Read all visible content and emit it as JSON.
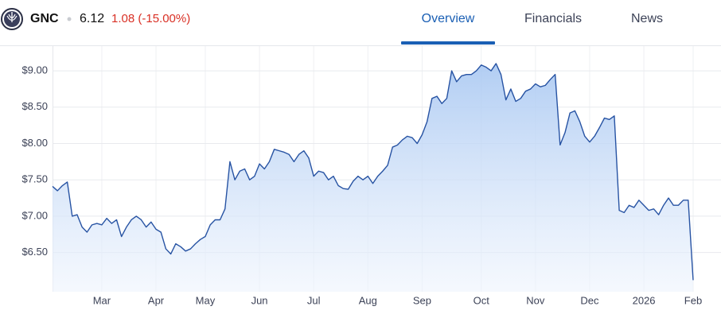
{
  "header": {
    "ticker": "GNC",
    "price": "6.12",
    "change": "1.08 (-15.00%)",
    "tabs": [
      "Overview",
      "Financials",
      "News"
    ]
  },
  "chart_data": {
    "type": "area",
    "color": "#2753a3",
    "grid": true,
    "categories": [
      null,
      null,
      null,
      null,
      null,
      null,
      null,
      null,
      null,
      null,
      "Mar",
      null,
      null,
      null,
      null,
      null,
      null,
      null,
      null,
      null,
      null,
      "Apr",
      null,
      null,
      null,
      null,
      null,
      null,
      null,
      null,
      null,
      "May",
      null,
      null,
      null,
      null,
      null,
      null,
      null,
      null,
      null,
      null,
      "Jun",
      null,
      null,
      null,
      null,
      null,
      null,
      null,
      null,
      null,
      null,
      "Jul",
      null,
      null,
      null,
      null,
      null,
      null,
      null,
      null,
      null,
      null,
      "Aug",
      null,
      null,
      null,
      null,
      null,
      null,
      null,
      null,
      null,
      null,
      "Sep",
      null,
      null,
      null,
      null,
      null,
      null,
      null,
      null,
      null,
      null,
      null,
      "Oct",
      null,
      null,
      null,
      null,
      null,
      null,
      null,
      null,
      null,
      null,
      "Nov",
      null,
      null,
      null,
      null,
      null,
      null,
      null,
      null,
      null,
      null,
      "Dec",
      null,
      null,
      null,
      null,
      null,
      null,
      null,
      null,
      null,
      null,
      "2026",
      null,
      null,
      null,
      null,
      null,
      null,
      null,
      null,
      null,
      "Feb"
    ],
    "values": [
      7.41,
      7.35,
      7.42,
      7.47,
      7.0,
      7.02,
      6.85,
      6.78,
      6.88,
      6.9,
      6.88,
      6.97,
      6.9,
      6.95,
      6.72,
      6.85,
      6.95,
      7.0,
      6.95,
      6.85,
      6.92,
      6.82,
      6.78,
      6.55,
      6.48,
      6.62,
      6.58,
      6.52,
      6.55,
      6.62,
      6.68,
      6.72,
      6.88,
      6.95,
      6.95,
      7.1,
      7.75,
      7.5,
      7.62,
      7.65,
      7.5,
      7.55,
      7.72,
      7.65,
      7.75,
      7.92,
      7.9,
      7.88,
      7.85,
      7.75,
      7.85,
      7.9,
      7.8,
      7.55,
      7.62,
      7.6,
      7.5,
      7.55,
      7.42,
      7.38,
      7.37,
      7.48,
      7.55,
      7.5,
      7.55,
      7.45,
      7.55,
      7.62,
      7.7,
      7.95,
      7.98,
      8.05,
      8.1,
      8.08,
      8.0,
      8.12,
      8.3,
      8.62,
      8.65,
      8.55,
      8.62,
      9.0,
      8.85,
      8.93,
      8.95,
      8.95,
      9.0,
      9.08,
      9.05,
      9.0,
      9.1,
      8.95,
      8.6,
      8.75,
      8.58,
      8.62,
      8.72,
      8.75,
      8.82,
      8.78,
      8.8,
      8.88,
      8.95,
      7.98,
      8.15,
      8.42,
      8.45,
      8.3,
      8.1,
      8.02,
      8.1,
      8.22,
      8.35,
      8.33,
      8.38,
      7.08,
      7.05,
      7.15,
      7.12,
      7.22,
      7.15,
      7.08,
      7.1,
      7.02,
      7.15,
      7.25,
      7.15,
      7.15,
      7.22,
      7.22,
      6.12
    ],
    "ylim": [
      5.96,
      9.34
    ],
    "yticks": [
      {
        "value": 6.5,
        "label": "$6.50"
      },
      {
        "value": 7,
        "label": "$7.00"
      },
      {
        "value": 7.5,
        "label": "$7.50"
      },
      {
        "value": 8,
        "label": "$8.00"
      },
      {
        "value": 8.5,
        "label": "$8.50"
      },
      {
        "value": 9,
        "label": "$9.00"
      }
    ]
  }
}
